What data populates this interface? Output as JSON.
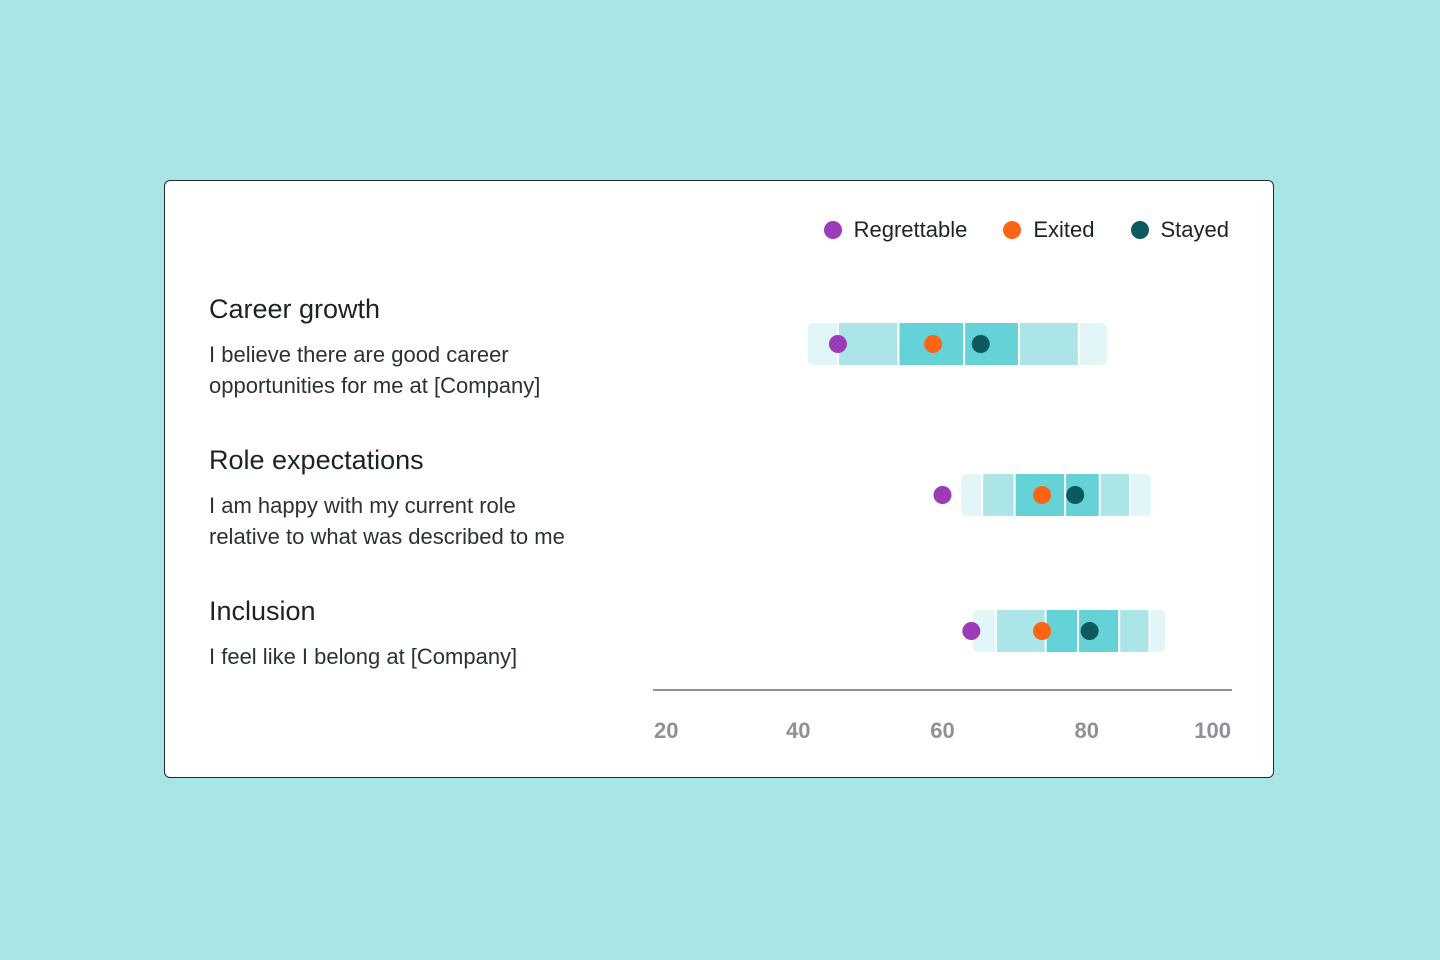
{
  "legend": [
    {
      "label": "Regrettable",
      "color": "#9b3bb8"
    },
    {
      "label": "Exited",
      "color": "#ff6414"
    },
    {
      "label": "Stayed",
      "color": "#0b5a5e"
    }
  ],
  "questions": [
    {
      "title": "Career growth",
      "desc_line1": "I believe there are good career",
      "desc_line2": "opportunities for me at [Company]"
    },
    {
      "title": "Role expectations",
      "desc_line1": "I am happy with my current role",
      "desc_line2": "relative to what was described to me"
    },
    {
      "title": "Inclusion",
      "desc_line1": "I feel like I belong at [Company]",
      "desc_line2": ""
    }
  ],
  "colors": {
    "band_outer": "#e3f6f7",
    "band_mid": "#abe5e8",
    "band_inner": "#65d2d7",
    "axis": "#8e9198"
  },
  "chart_data": {
    "type": "scatter",
    "xlim": [
      20,
      100
    ],
    "x_ticks": [
      "20",
      "40",
      "60",
      "80",
      "100"
    ],
    "rows": [
      {
        "category": "Career growth",
        "range": [
          41.3,
          82.8
        ],
        "p10": 45.5,
        "p25": 53.9,
        "median": 63.0,
        "p75": 70.6,
        "p90": 78.9,
        "Regrettable": 45.5,
        "Exited": 58.7,
        "Stayed": 65.3
      },
      {
        "category": "Role expectations",
        "range": [
          62.6,
          88.9
        ],
        "p10": 65.5,
        "p25": 70.0,
        "median": 77.0,
        "p75": 81.8,
        "p90": 86.0,
        "Regrettable": 60.0,
        "Exited": 73.8,
        "Stayed": 78.4
      },
      {
        "category": "Inclusion",
        "range": [
          64.2,
          90.9
        ],
        "p10": 67.4,
        "p25": 74.3,
        "median": 78.8,
        "p75": 84.5,
        "p90": 88.7,
        "Regrettable": 64.0,
        "Exited": 73.8,
        "Stayed": 80.4
      }
    ]
  }
}
